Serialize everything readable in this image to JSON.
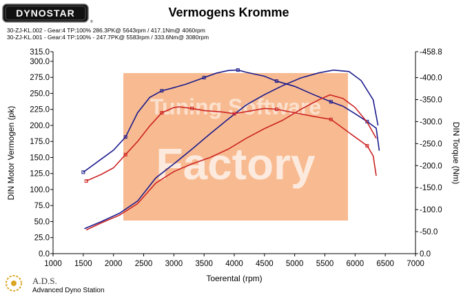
{
  "brand": {
    "logo_text": "DYNOSTAR",
    "logo_mark": "®",
    "watermark_line1": "Tuning Software",
    "watermark_line2": "Factory",
    "ads_title": "A.D.S.",
    "ads_subtitle": "Advanced Dyno Station"
  },
  "chart_data": {
    "type": "line",
    "title": "Vermogens Kromme",
    "xlabel": "Toerental (rpm)",
    "ylabel_left": "DIN Motor Vermogen (pk)",
    "ylabel_right": "DIN Torque (Nm)",
    "xlim": [
      1000,
      7000
    ],
    "ylim_left": [
      0,
      315
    ],
    "ylim_right": [
      0,
      458.8
    ],
    "x_ticks": [
      "1000",
      "1500",
      "2000",
      "2500",
      "3000",
      "3500",
      "4000",
      "4500",
      "5000",
      "5500",
      "6000",
      "6500",
      "7000"
    ],
    "y_ticks_left": [
      "0.0",
      "25.0",
      "50.0",
      "75.0",
      "100.0",
      "125.0",
      "150.0",
      "175.0",
      "200.0",
      "225.0",
      "250.0",
      "275.0",
      "300.0",
      "315.0"
    ],
    "y_ticks_right": [
      "0.0",
      "-50.0",
      "-100.0",
      "-150.0",
      "-200.0",
      "-250.0",
      "-300.0",
      "-350.0",
      "-400.0",
      "-458.8"
    ],
    "legend": [
      {
        "text": "30-ZJ-KL.002 - Gear:4 TP:100%     286.3PK@ 5643rpm / 417.1Nm@ 4060rpm",
        "color": "#1a1a8c"
      },
      {
        "text": "30-ZJ-KL.001 - Gear:4 TP:100%  - 247.7PK@ 5583rpm / 333.6Nm@ 3080rpm",
        "color": "#cc2222"
      }
    ],
    "series": [
      {
        "name": "30-ZJ-KL.002 Vermogen",
        "axis": "left",
        "color": "#1a1a8c",
        "x": [
          1520,
          1800,
          2100,
          2400,
          2700,
          3000,
          3300,
          3600,
          3900,
          4200,
          4500,
          4800,
          5100,
          5400,
          5643,
          5900,
          6100,
          6300,
          6380
        ],
        "y": [
          39,
          50,
          63,
          82,
          118,
          140,
          163,
          187,
          210,
          232,
          248,
          262,
          274,
          282,
          286.3,
          284,
          270,
          240,
          200
        ]
      },
      {
        "name": "30-ZJ-KL.002 Torque",
        "axis": "right",
        "color": "#1a1a8c",
        "x": [
          1500,
          1800,
          2000,
          2200,
          2400,
          2600,
          2800,
          3000,
          3200,
          3500,
          3700,
          3900,
          4060,
          4200,
          4500,
          4700,
          5000,
          5300,
          5600,
          5800,
          6000,
          6200,
          6350,
          6400
        ],
        "y": [
          185,
          215,
          235,
          265,
          320,
          355,
          370,
          377,
          385,
          400,
          410,
          416,
          417.1,
          412,
          403,
          392,
          380,
          362,
          345,
          335,
          318,
          300,
          285,
          234
        ]
      },
      {
        "name": "30-ZJ-KL.001 Vermogen",
        "axis": "left",
        "color": "#cc2222",
        "x": [
          1550,
          1800,
          2100,
          2400,
          2700,
          3000,
          3300,
          3600,
          3900,
          4200,
          4500,
          4800,
          5100,
          5400,
          5583,
          5800,
          6000,
          6200,
          6350
        ],
        "y": [
          37,
          48,
          60,
          78,
          110,
          128,
          140,
          150,
          163,
          180,
          195,
          208,
          225,
          240,
          247.7,
          242,
          228,
          205,
          180
        ]
      },
      {
        "name": "30-ZJ-KL.001 Torque",
        "axis": "right",
        "color": "#cc2222",
        "x": [
          1550,
          1800,
          2000,
          2200,
          2400,
          2600,
          2800,
          3000,
          3080,
          3300,
          3500,
          3800,
          4000,
          4300,
          4500,
          4700,
          5000,
          5300,
          5600,
          5800,
          6000,
          6200,
          6300,
          6350
        ],
        "y": [
          165,
          180,
          195,
          225,
          255,
          290,
          320,
          332,
          333.6,
          330,
          325,
          322,
          318,
          325,
          330,
          328,
          320,
          312,
          305,
          285,
          265,
          245,
          222,
          177
        ]
      }
    ]
  }
}
